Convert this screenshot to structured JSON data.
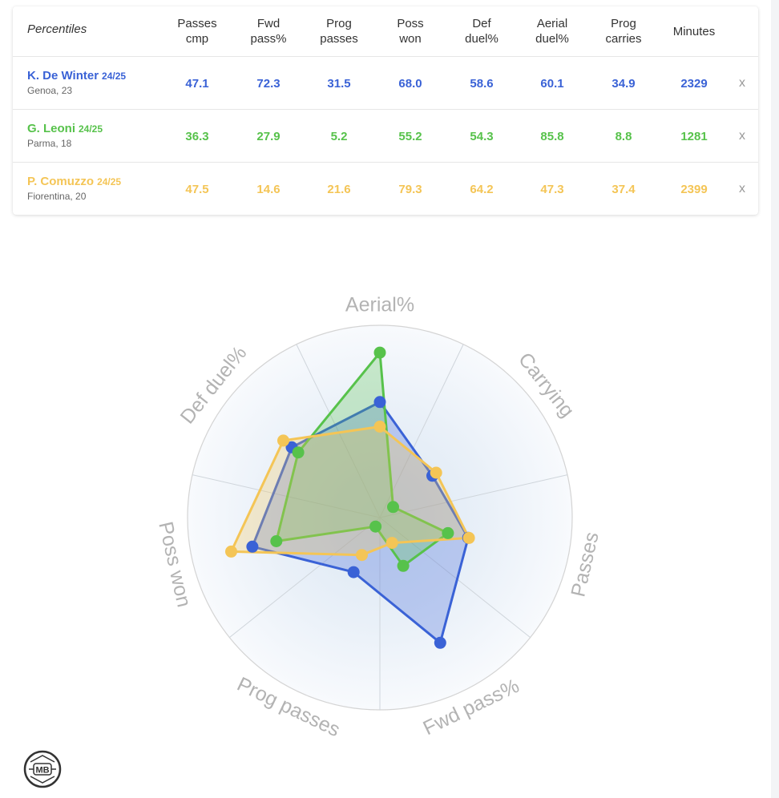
{
  "table": {
    "header": {
      "corner_label": "Percentiles",
      "columns": [
        [
          "Passes",
          "cmp"
        ],
        [
          "Fwd",
          "pass%"
        ],
        [
          "Prog",
          "passes"
        ],
        [
          "Poss",
          "won"
        ],
        [
          "Def",
          "duel%"
        ],
        [
          "Aerial",
          "duel%"
        ],
        [
          "Prog",
          "carries"
        ],
        [
          "Minutes"
        ]
      ]
    },
    "remove_label": "x",
    "players": [
      {
        "name": "K. De Winter",
        "season": "24/25",
        "club": "Genoa, 23",
        "color": "#3a62d6",
        "values": [
          "47.1",
          "72.3",
          "31.5",
          "68.0",
          "58.6",
          "60.1",
          "34.9",
          "2329"
        ]
      },
      {
        "name": "G. Leoni",
        "season": "24/25",
        "club": "Parma, 18",
        "color": "#57c24b",
        "values": [
          "36.3",
          "27.9",
          "5.2",
          "55.2",
          "54.3",
          "85.8",
          "8.8",
          "1281"
        ]
      },
      {
        "name": "P. Comuzzo",
        "season": "24/25",
        "club": "Fiorentina, 20",
        "color": "#f4c556",
        "values": [
          "47.5",
          "14.6",
          "21.6",
          "79.3",
          "64.2",
          "47.3",
          "37.4",
          "2399"
        ]
      }
    ]
  },
  "chart_data": {
    "type": "radar",
    "axes": [
      "Aerial%",
      "Carrying",
      "Passes",
      "Fwd pass%",
      "Prog passes",
      "Poss won",
      "Def duel%"
    ],
    "range": [
      0,
      100
    ],
    "series": [
      {
        "name": "K. De Winter",
        "color": "#3a62d6",
        "values": [
          60.1,
          34.9,
          47.1,
          72.3,
          31.5,
          68.0,
          58.6
        ]
      },
      {
        "name": "G. Leoni",
        "color": "#57c24b",
        "values": [
          85.8,
          8.8,
          36.3,
          27.9,
          5.2,
          55.2,
          54.3
        ]
      },
      {
        "name": "P. Comuzzo",
        "color": "#f4c556",
        "values": [
          47.3,
          37.4,
          47.5,
          14.6,
          21.6,
          79.3,
          64.2
        ]
      }
    ],
    "grid": true
  },
  "logo": {
    "text": "MB"
  }
}
